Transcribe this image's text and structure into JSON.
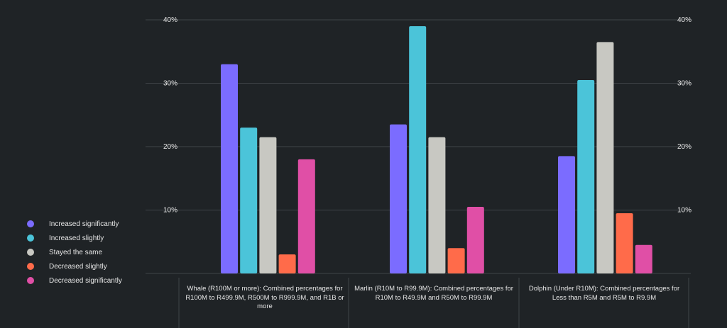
{
  "chart_data": {
    "type": "bar",
    "categories": [
      "Whale (R100M or more): Combined percentages for R100M to R499.9M, R500M to R999.9M, and R1B or more",
      "Marlin (R10M to R99.9M): Combined percentages for R10M to R49.9M and R50M to R99.9M",
      "Dolphin (Under R10M): Combined percentages for Less than R5M and R5M to R9.9M"
    ],
    "series": [
      {
        "name": "Increased significantly",
        "color": "#7b6cff",
        "values": [
          33,
          23.5,
          18.5
        ]
      },
      {
        "name": "Increased slightly",
        "color": "#4bc4d9",
        "values": [
          23,
          39,
          30.5
        ]
      },
      {
        "name": "Stayed the same",
        "color": "#c8c8c2",
        "values": [
          21.5,
          21.5,
          36.5
        ]
      },
      {
        "name": "Decreased slightly",
        "color": "#ff6b4a",
        "values": [
          3,
          4,
          9.5
        ]
      },
      {
        "name": "Decreased significantly",
        "color": "#e04fa6",
        "values": [
          18,
          10.5,
          4.5
        ]
      }
    ],
    "ylim": [
      0,
      40
    ],
    "yticks": [
      "",
      "10%",
      "20%",
      "30%",
      "40%"
    ],
    "grid": true,
    "legend": "left"
  }
}
